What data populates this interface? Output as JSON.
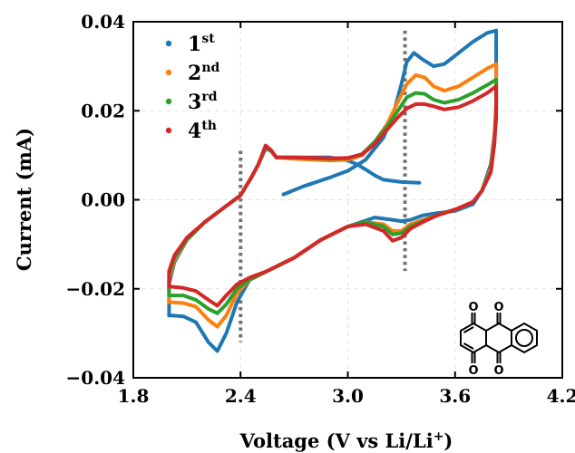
{
  "chart_data": {
    "type": "line",
    "title": "",
    "xlabel": "Voltage (V vs Li/Li",
    "xlabel_sup": "+",
    "xlabel_end": ")",
    "ylabel": "Current (mA)",
    "xlim": [
      1.8,
      4.2
    ],
    "ylim": [
      -0.04,
      0.04
    ],
    "xticks": [
      1.8,
      2.4,
      3.0,
      3.6,
      4.2
    ],
    "xtick_labels": [
      "1.8",
      "2.4",
      "3.0",
      "3.6",
      "4.2"
    ],
    "yticks": [
      -0.04,
      -0.02,
      0.0,
      0.02,
      0.04
    ],
    "ytick_labels": [
      "−0.04",
      "−0.02",
      "0.00",
      "0.02",
      "0.04"
    ],
    "grid": true,
    "legend_position": "top-left",
    "reference_lines": [
      {
        "x": 2.4,
        "y_range": [
          -0.032,
          0.011
        ],
        "style": "dotted",
        "color": "#707070"
      },
      {
        "x": 3.32,
        "y_range": [
          -0.016,
          0.038
        ],
        "style": "dotted",
        "color": "#707070"
      }
    ],
    "series": [
      {
        "name": "1st",
        "name_main": "1",
        "name_sup": "st",
        "color": "#1f77b4",
        "forward": [
          [
            2.64,
            0.0012
          ],
          [
            2.75,
            0.003
          ],
          [
            2.9,
            0.005
          ],
          [
            3.0,
            0.0065
          ],
          [
            3.1,
            0.009
          ],
          [
            3.2,
            0.014
          ],
          [
            3.26,
            0.02
          ],
          [
            3.3,
            0.026
          ],
          [
            3.33,
            0.031
          ],
          [
            3.37,
            0.033
          ],
          [
            3.42,
            0.0315
          ],
          [
            3.48,
            0.03
          ],
          [
            3.54,
            0.0305
          ],
          [
            3.62,
            0.033
          ],
          [
            3.7,
            0.0355
          ],
          [
            3.78,
            0.0375
          ],
          [
            3.83,
            0.038
          ]
        ],
        "reverse": [
          [
            3.83,
            0.038
          ],
          [
            3.83,
            0.028
          ],
          [
            3.83,
            0.018
          ],
          [
            3.8,
            0.008
          ],
          [
            3.75,
            0.002
          ],
          [
            3.7,
            -0.001
          ],
          [
            3.6,
            -0.0025
          ],
          [
            3.5,
            -0.003
          ],
          [
            3.42,
            -0.0035
          ],
          [
            3.35,
            -0.0045
          ],
          [
            3.3,
            -0.0048
          ],
          [
            3.25,
            -0.0045
          ],
          [
            3.15,
            -0.004
          ],
          [
            3.0,
            -0.006
          ],
          [
            2.85,
            -0.009
          ],
          [
            2.7,
            -0.013
          ],
          [
            2.55,
            -0.016
          ],
          [
            2.45,
            -0.018
          ],
          [
            2.38,
            -0.023
          ],
          [
            2.32,
            -0.03
          ],
          [
            2.27,
            -0.034
          ],
          [
            2.22,
            -0.032
          ],
          [
            2.15,
            -0.0275
          ],
          [
            2.08,
            -0.0262
          ],
          [
            2.02,
            -0.026
          ],
          [
            2.0,
            -0.026
          ]
        ],
        "return": [
          [
            2.0,
            -0.026
          ],
          [
            2.0,
            -0.019
          ],
          [
            2.03,
            -0.014
          ],
          [
            2.1,
            -0.009
          ],
          [
            2.2,
            -0.005
          ],
          [
            2.3,
            -0.002
          ],
          [
            2.4,
            0.001
          ],
          [
            2.46,
            0.005
          ],
          [
            2.5,
            0.008
          ],
          [
            2.54,
            0.0115
          ],
          [
            2.57,
            0.011
          ],
          [
            2.6,
            0.0095
          ],
          [
            2.7,
            0.0095
          ],
          [
            2.8,
            0.0095
          ],
          [
            2.9,
            0.0095
          ],
          [
            2.95,
            0.0092
          ],
          [
            3.0,
            0.0088
          ],
          [
            3.05,
            0.008
          ],
          [
            3.1,
            0.0068
          ],
          [
            3.15,
            0.0055
          ],
          [
            3.2,
            0.0045
          ],
          [
            3.3,
            0.004
          ],
          [
            3.4,
            0.0038
          ]
        ]
      },
      {
        "name": "2nd",
        "name_main": "2",
        "name_sup": "nd",
        "color": "#ff7f0e",
        "forward": [
          [
            2.6,
            0.0095
          ],
          [
            2.7,
            0.0092
          ],
          [
            2.8,
            0.009
          ],
          [
            2.9,
            0.0088
          ],
          [
            3.0,
            0.009
          ],
          [
            3.08,
            0.01
          ],
          [
            3.15,
            0.013
          ],
          [
            3.22,
            0.017
          ],
          [
            3.28,
            0.022
          ],
          [
            3.33,
            0.026
          ],
          [
            3.38,
            0.028
          ],
          [
            3.43,
            0.0275
          ],
          [
            3.48,
            0.0255
          ],
          [
            3.54,
            0.0245
          ],
          [
            3.62,
            0.0255
          ],
          [
            3.7,
            0.0275
          ],
          [
            3.78,
            0.0295
          ],
          [
            3.83,
            0.0305
          ]
        ],
        "reverse": [
          [
            3.83,
            0.0305
          ],
          [
            3.83,
            0.022
          ],
          [
            3.82,
            0.014
          ],
          [
            3.8,
            0.007
          ],
          [
            3.75,
            0.002
          ],
          [
            3.7,
            -0.0005
          ],
          [
            3.6,
            -0.0022
          ],
          [
            3.5,
            -0.0035
          ],
          [
            3.42,
            -0.0045
          ],
          [
            3.35,
            -0.0055
          ],
          [
            3.3,
            -0.007
          ],
          [
            3.25,
            -0.007
          ],
          [
            3.2,
            -0.0055
          ],
          [
            3.1,
            -0.005
          ],
          [
            3.0,
            -0.006
          ],
          [
            2.85,
            -0.009
          ],
          [
            2.7,
            -0.013
          ],
          [
            2.55,
            -0.016
          ],
          [
            2.45,
            -0.018
          ],
          [
            2.38,
            -0.021
          ],
          [
            2.32,
            -0.026
          ],
          [
            2.27,
            -0.0285
          ],
          [
            2.22,
            -0.027
          ],
          [
            2.15,
            -0.024
          ],
          [
            2.08,
            -0.0232
          ],
          [
            2.0,
            -0.023
          ]
        ],
        "return": [
          [
            2.0,
            -0.023
          ],
          [
            2.0,
            -0.018
          ],
          [
            2.03,
            -0.0135
          ],
          [
            2.1,
            -0.009
          ],
          [
            2.2,
            -0.005
          ],
          [
            2.3,
            -0.002
          ],
          [
            2.4,
            0.001
          ],
          [
            2.46,
            0.005
          ],
          [
            2.5,
            0.008
          ],
          [
            2.54,
            0.0118
          ],
          [
            2.57,
            0.011
          ],
          [
            2.6,
            0.0095
          ]
        ]
      },
      {
        "name": "3rd",
        "name_main": "3",
        "name_sup": "rd",
        "color": "#2ca02c",
        "forward": [
          [
            2.6,
            0.0095
          ],
          [
            2.7,
            0.0095
          ],
          [
            2.8,
            0.0093
          ],
          [
            2.9,
            0.0092
          ],
          [
            3.0,
            0.0093
          ],
          [
            3.08,
            0.0103
          ],
          [
            3.15,
            0.013
          ],
          [
            3.22,
            0.0165
          ],
          [
            3.28,
            0.02
          ],
          [
            3.33,
            0.023
          ],
          [
            3.38,
            0.024
          ],
          [
            3.43,
            0.0238
          ],
          [
            3.48,
            0.0225
          ],
          [
            3.54,
            0.0218
          ],
          [
            3.62,
            0.0225
          ],
          [
            3.7,
            0.024
          ],
          [
            3.78,
            0.0258
          ],
          [
            3.83,
            0.027
          ]
        ],
        "reverse": [
          [
            3.83,
            0.027
          ],
          [
            3.83,
            0.02
          ],
          [
            3.82,
            0.013
          ],
          [
            3.8,
            0.0065
          ],
          [
            3.75,
            0.002
          ],
          [
            3.7,
            -0.0005
          ],
          [
            3.6,
            -0.0022
          ],
          [
            3.5,
            -0.0035
          ],
          [
            3.42,
            -0.0048
          ],
          [
            3.35,
            -0.006
          ],
          [
            3.3,
            -0.0075
          ],
          [
            3.25,
            -0.0078
          ],
          [
            3.2,
            -0.006
          ],
          [
            3.1,
            -0.005
          ],
          [
            3.0,
            -0.006
          ],
          [
            2.85,
            -0.009
          ],
          [
            2.7,
            -0.013
          ],
          [
            2.55,
            -0.016
          ],
          [
            2.45,
            -0.018
          ],
          [
            2.38,
            -0.02
          ],
          [
            2.32,
            -0.0235
          ],
          [
            2.27,
            -0.0255
          ],
          [
            2.22,
            -0.0245
          ],
          [
            2.15,
            -0.0225
          ],
          [
            2.08,
            -0.0215
          ],
          [
            2.0,
            -0.0215
          ]
        ],
        "return": [
          [
            2.0,
            -0.0215
          ],
          [
            2.0,
            -0.017
          ],
          [
            2.03,
            -0.013
          ],
          [
            2.1,
            -0.009
          ],
          [
            2.2,
            -0.005
          ],
          [
            2.3,
            -0.002
          ],
          [
            2.4,
            0.001
          ],
          [
            2.46,
            0.005
          ],
          [
            2.5,
            0.008
          ],
          [
            2.54,
            0.0118
          ],
          [
            2.57,
            0.011
          ],
          [
            2.6,
            0.0095
          ]
        ]
      },
      {
        "name": "4th",
        "name_main": "4",
        "name_sup": "th",
        "color": "#d62728",
        "forward": [
          [
            2.6,
            0.0095
          ],
          [
            2.7,
            0.0095
          ],
          [
            2.8,
            0.0094
          ],
          [
            2.9,
            0.0093
          ],
          [
            3.0,
            0.0094
          ],
          [
            3.08,
            0.0102
          ],
          [
            3.15,
            0.0125
          ],
          [
            3.22,
            0.0158
          ],
          [
            3.28,
            0.0185
          ],
          [
            3.33,
            0.0205
          ],
          [
            3.38,
            0.0215
          ],
          [
            3.43,
            0.0215
          ],
          [
            3.48,
            0.021
          ],
          [
            3.54,
            0.0203
          ],
          [
            3.62,
            0.0208
          ],
          [
            3.7,
            0.0222
          ],
          [
            3.78,
            0.024
          ],
          [
            3.83,
            0.0255
          ]
        ],
        "reverse": [
          [
            3.83,
            0.0255
          ],
          [
            3.83,
            0.019
          ],
          [
            3.82,
            0.0125
          ],
          [
            3.8,
            0.0062
          ],
          [
            3.75,
            0.002
          ],
          [
            3.7,
            -0.0005
          ],
          [
            3.6,
            -0.0022
          ],
          [
            3.5,
            -0.0035
          ],
          [
            3.42,
            -0.005
          ],
          [
            3.35,
            -0.0065
          ],
          [
            3.3,
            -0.0085
          ],
          [
            3.25,
            -0.0092
          ],
          [
            3.2,
            -0.007
          ],
          [
            3.1,
            -0.0055
          ],
          [
            3.0,
            -0.006
          ],
          [
            2.85,
            -0.009
          ],
          [
            2.7,
            -0.013
          ],
          [
            2.55,
            -0.016
          ],
          [
            2.45,
            -0.0175
          ],
          [
            2.38,
            -0.019
          ],
          [
            2.32,
            -0.0215
          ],
          [
            2.27,
            -0.0238
          ],
          [
            2.22,
            -0.0225
          ],
          [
            2.15,
            -0.0205
          ],
          [
            2.08,
            -0.0198
          ],
          [
            2.0,
            -0.0195
          ]
        ],
        "return": [
          [
            2.0,
            -0.0195
          ],
          [
            2.0,
            -0.016
          ],
          [
            2.03,
            -0.0125
          ],
          [
            2.1,
            -0.0085
          ],
          [
            2.2,
            -0.005
          ],
          [
            2.3,
            -0.002
          ],
          [
            2.4,
            0.001
          ],
          [
            2.46,
            0.005
          ],
          [
            2.5,
            0.008
          ],
          [
            2.54,
            0.0122
          ],
          [
            2.57,
            0.0112
          ],
          [
            2.6,
            0.0095
          ]
        ]
      }
    ]
  },
  "inset": {
    "oxygen_label": "O"
  }
}
